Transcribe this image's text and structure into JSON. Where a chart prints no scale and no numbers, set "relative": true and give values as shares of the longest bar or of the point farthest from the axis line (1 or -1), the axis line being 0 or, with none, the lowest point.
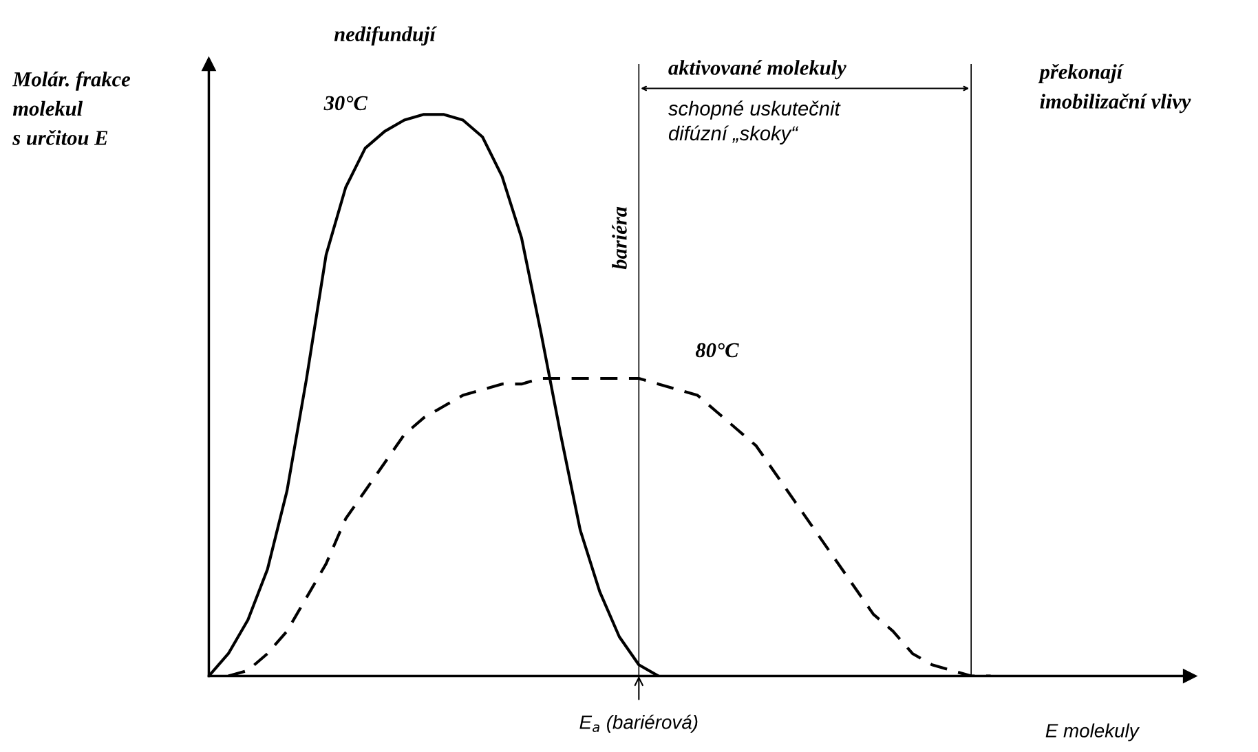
{
  "chart_data": {
    "type": "line",
    "relative": true,
    "ylabel": "Molár. frakce\nmolekul\ns určitou E",
    "xlabel": "E molekuly",
    "categories": [
      null,
      null,
      null,
      null,
      null,
      null,
      null,
      null,
      null,
      null,
      null,
      null,
      null,
      null,
      null,
      null,
      null,
      null,
      null,
      null,
      null,
      null,
      null,
      null,
      null,
      null,
      null,
      null,
      null,
      null,
      null,
      null,
      null,
      null,
      null,
      null,
      null,
      null,
      null,
      null,
      null
    ],
    "series": [
      {
        "name": "30°C",
        "color": "#000000",
        "line_style": "solid",
        "values": [
          0,
          0.04,
          0.1,
          0.19,
          0.33,
          0.53,
          0.75,
          0.87,
          0.94,
          0.97,
          0.99,
          1.0,
          1.0,
          0.99,
          0.96,
          0.89,
          0.78,
          0.61,
          0.43,
          0.26,
          0.15,
          0.07,
          0.02,
          0,
          null,
          null,
          null,
          null,
          null,
          null,
          null,
          null,
          null,
          null,
          null,
          null,
          null,
          null,
          null,
          null,
          null
        ]
      },
      {
        "name": "80°C",
        "color": "#000000",
        "line_style": "dashed",
        "values": [
          null,
          0,
          0.01,
          0.04,
          0.08,
          0.14,
          0.2,
          0.28,
          0.33,
          0.38,
          0.43,
          0.46,
          0.48,
          0.5,
          0.51,
          0.52,
          0.52,
          0.53,
          0.53,
          0.53,
          0.53,
          0.53,
          0.53,
          0.52,
          0.51,
          0.5,
          0.47,
          0.44,
          0.41,
          0.36,
          0.31,
          0.26,
          0.21,
          0.16,
          0.11,
          0.08,
          0.04,
          0.02,
          0.01,
          0,
          0
        ]
      }
    ],
    "annotations": [
      "nedifundují",
      "aktivované molekuly",
      "schopné uskutečnit\ndifúzní „skoky“",
      "překonají\nimobilizační vlivy",
      "E$_{a}$ (bariérová)",
      "bariéra"
    ],
    "marker": "none"
  }
}
